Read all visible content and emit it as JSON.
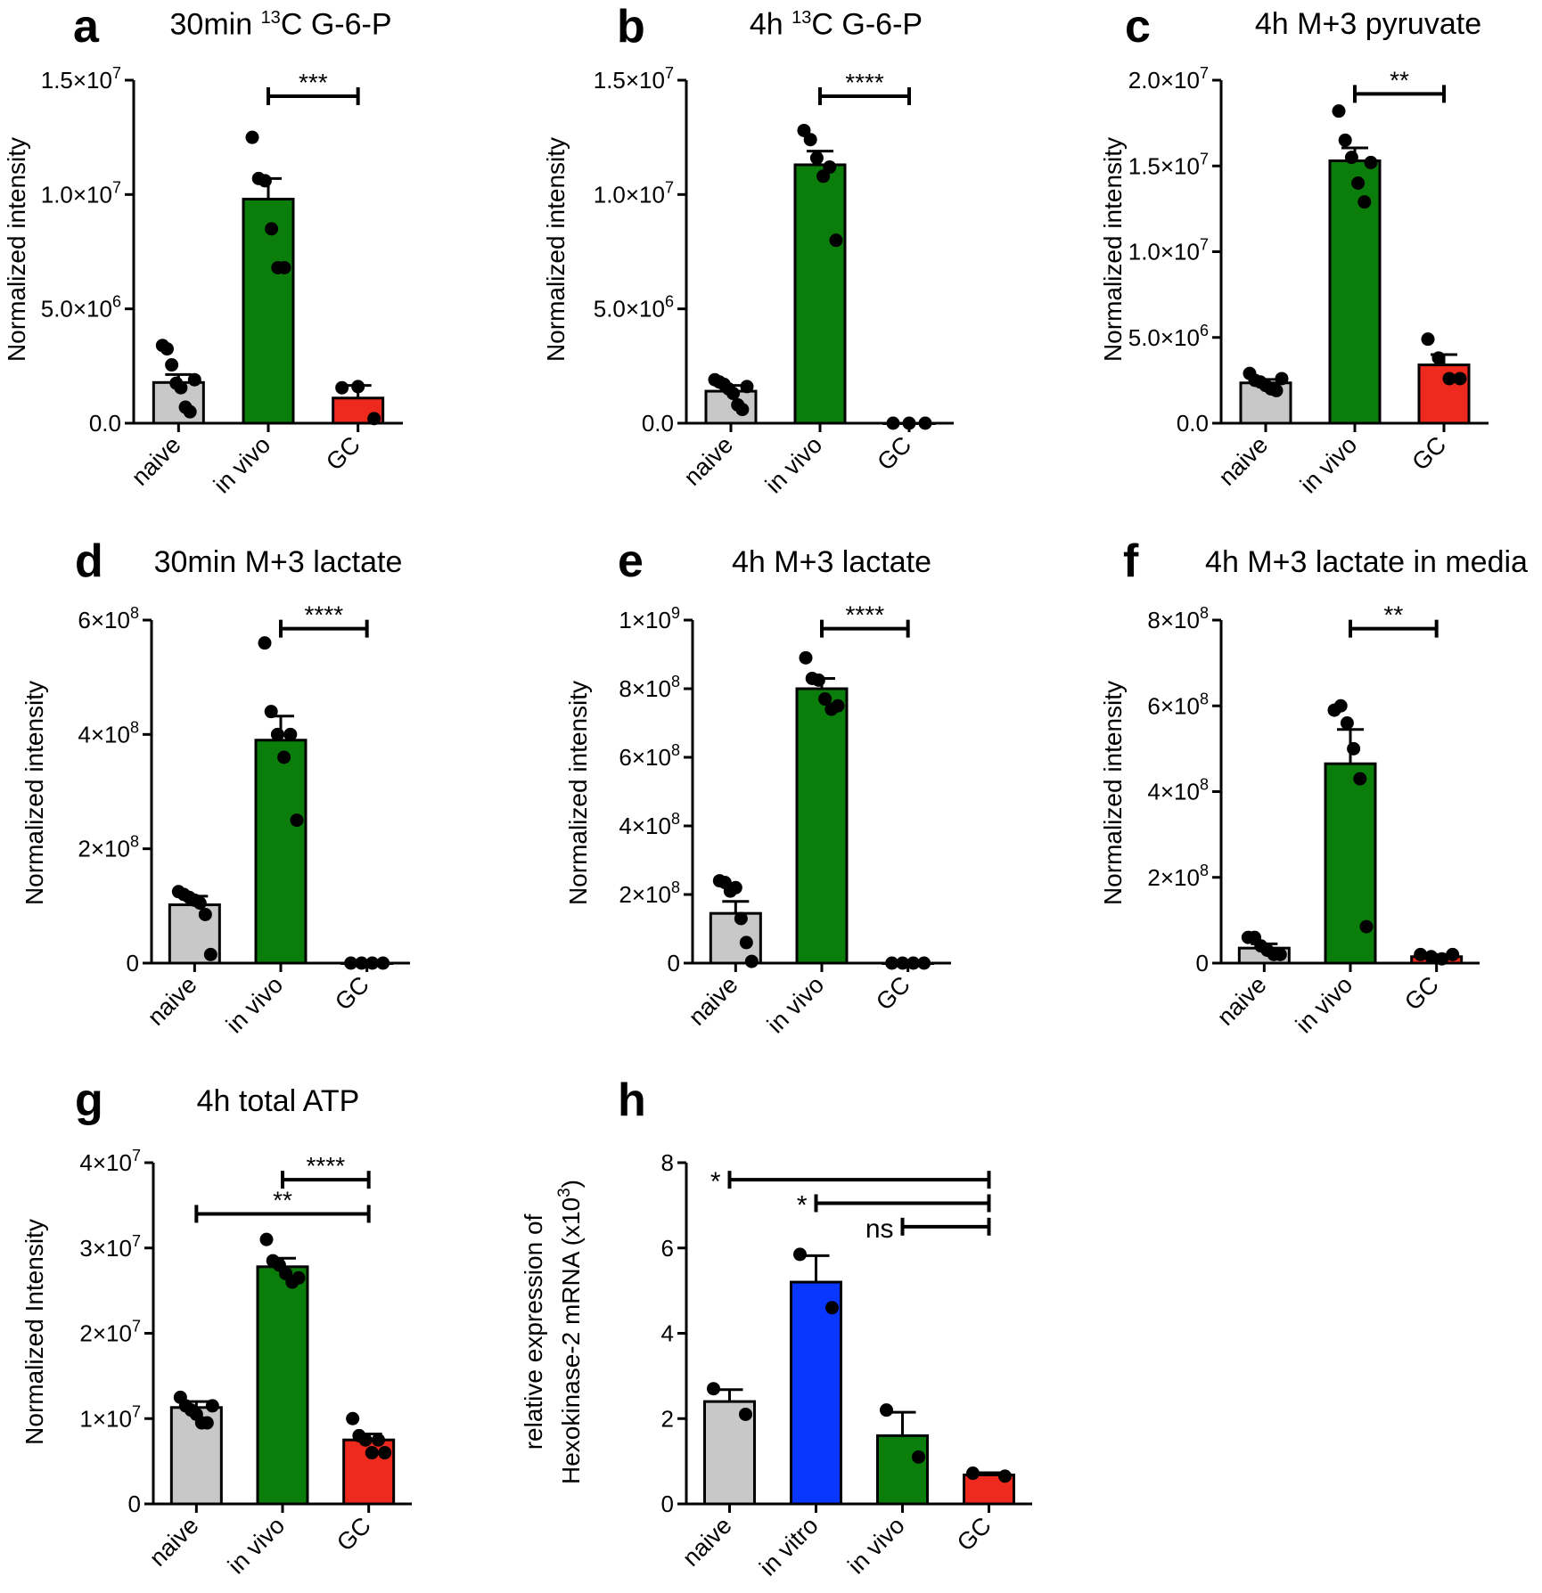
{
  "chart_data": [
    {
      "panel": "a",
      "type": "bar",
      "title": "30min ¹³C G-6-P",
      "title_pre": "30min ",
      "title_sup": "13",
      "title_post": "C G-6-P",
      "ylabel": "Normalized intensity",
      "categories": [
        "naive",
        "in vivo",
        "GC"
      ],
      "colors": [
        "#c8c8c8",
        "#0b7d0b",
        "#ee2a1f"
      ],
      "values": [
        1780000.0,
        9800000.0,
        1100000.0
      ],
      "errors": [
        350000.0,
        900000.0,
        550000.0
      ],
      "points": [
        [
          3400000.0,
          3250000.0,
          2550000.0,
          1750000.0,
          1550000.0,
          700000.0,
          500000.0,
          1900000.0
        ],
        [
          12500000.0,
          10700000.0,
          10600000.0,
          8500000.0,
          6800000.0,
          6800000.0
        ],
        [
          1550000.0,
          1600000.0,
          200000.0
        ]
      ],
      "ylim": [
        0,
        15000000
      ],
      "ticks": [
        {
          "v": 0,
          "m": "0.0",
          "e": ""
        },
        {
          "v": 5000000,
          "m": "5.0×10",
          "e": "6"
        },
        {
          "v": 10000000,
          "m": "1.0×10",
          "e": "7"
        },
        {
          "v": 15000000,
          "m": "1.5×10",
          "e": "7"
        }
      ],
      "sig": [
        {
          "from": 1,
          "to": 2,
          "label": "***",
          "y": 14300000.0
        }
      ]
    },
    {
      "panel": "b",
      "type": "bar",
      "title": "4h ¹³C G-6-P",
      "title_pre": "4h ",
      "title_sup": "13",
      "title_post": "C G-6-P",
      "ylabel": "Normalized intensity",
      "categories": [
        "naive",
        "in vivo",
        "GC"
      ],
      "colors": [
        "#c8c8c8",
        "#0b7d0b",
        "#ee2a1f"
      ],
      "values": [
        1400000.0,
        11300000.0,
        0.0
      ],
      "errors": [
        250000.0,
        600000.0,
        0.0
      ],
      "points": [
        [
          1900000.0,
          1800000.0,
          1700000.0,
          1500000.0,
          1300000.0,
          800000.0,
          600000.0,
          1600000.0
        ],
        [
          12800000.0,
          12400000.0,
          11600000.0,
          10800000.0,
          11200000.0,
          8000000.0
        ],
        [
          0.0,
          0.0,
          0.0
        ]
      ],
      "ylim": [
        0,
        15000000
      ],
      "ticks": [
        {
          "v": 0,
          "m": "0.0",
          "e": ""
        },
        {
          "v": 5000000,
          "m": "5.0×10",
          "e": "6"
        },
        {
          "v": 10000000,
          "m": "1.0×10",
          "e": "7"
        },
        {
          "v": 15000000,
          "m": "1.5×10",
          "e": "7"
        }
      ],
      "sig": [
        {
          "from": 1,
          "to": 2,
          "label": "****",
          "y": 14300000.0
        }
      ]
    },
    {
      "panel": "c",
      "type": "bar",
      "title": "4h M+3 pyruvate",
      "ylabel": "Normalized intensity",
      "categories": [
        "naive",
        "in vivo",
        "GC"
      ],
      "colors": [
        "#c8c8c8",
        "#0b7d0b",
        "#ee2a1f"
      ],
      "values": [
        2350000.0,
        15300000.0,
        3400000.0
      ],
      "errors": [
        200000.0,
        750000.0,
        600000.0
      ],
      "points": [
        [
          2900000.0,
          2500000.0,
          2400000.0,
          2200000.0,
          2000000.0,
          1900000.0,
          2600000.0
        ],
        [
          18200000.0,
          16500000.0,
          15500000.0,
          14000000.0,
          12900000.0,
          15200000.0
        ],
        [
          4900000.0,
          3800000.0,
          2600000.0,
          2600000.0
        ]
      ],
      "ylim": [
        0,
        20000000
      ],
      "ticks": [
        {
          "v": 0,
          "m": "0.0",
          "e": ""
        },
        {
          "v": 5000000,
          "m": "5.0×10",
          "e": "6"
        },
        {
          "v": 10000000,
          "m": "1.0×10",
          "e": "7"
        },
        {
          "v": 15000000,
          "m": "1.5×10",
          "e": "7"
        },
        {
          "v": 20000000,
          "m": "2.0×10",
          "e": "7"
        }
      ],
      "sig": [
        {
          "from": 1,
          "to": 2,
          "label": "**",
          "y": 19200000.0
        }
      ]
    },
    {
      "panel": "d",
      "type": "bar",
      "title": "30min M+3 lactate",
      "ylabel": "Normalized intensity",
      "categories": [
        "naive",
        "in vivo",
        "GC"
      ],
      "colors": [
        "#c8c8c8",
        "#0b7d0b",
        "#ee2a1f"
      ],
      "values": [
        102000000.0,
        390000000.0,
        0.0
      ],
      "errors": [
        15000000.0,
        42000000.0,
        0.0
      ],
      "points": [
        [
          125000000.0,
          120000000.0,
          115000000.0,
          110000000.0,
          105000000.0,
          85000000.0,
          15000000.0
        ],
        [
          560000000.0,
          440000000.0,
          400000000.0,
          360000000.0,
          400000000.0,
          250000000.0
        ],
        [
          0.0,
          0.0,
          0.0,
          0.0
        ]
      ],
      "ylim": [
        0,
        600000000
      ],
      "ticks": [
        {
          "v": 0,
          "m": "0",
          "e": ""
        },
        {
          "v": 200000000,
          "m": "2×10",
          "e": "8"
        },
        {
          "v": 400000000,
          "m": "4×10",
          "e": "8"
        },
        {
          "v": 600000000,
          "m": "6×10",
          "e": "8"
        }
      ],
      "sig": [
        {
          "from": 1,
          "to": 2,
          "label": "****",
          "y": 585000000.0
        }
      ]
    },
    {
      "panel": "e",
      "type": "bar",
      "title": "4h M+3 lactate",
      "ylabel": "Normalized intensity",
      "categories": [
        "naive",
        "in vivo",
        "GC"
      ],
      "colors": [
        "#c8c8c8",
        "#0b7d0b",
        "#ee2a1f"
      ],
      "values": [
        145000000.0,
        800000000.0,
        0.0
      ],
      "errors": [
        35000000.0,
        30000000.0,
        0.0
      ],
      "points": [
        [
          240000000.0,
          235000000.0,
          210000000.0,
          220000000.0,
          130000000.0,
          60000000.0,
          5000000.0
        ],
        [
          890000000.0,
          830000000.0,
          825000000.0,
          770000000.0,
          740000000.0,
          750000000.0
        ],
        [
          0.0,
          0.0,
          0.0,
          0.0
        ]
      ],
      "ylim": [
        0,
        1000000000
      ],
      "ticks": [
        {
          "v": 0,
          "m": "0",
          "e": ""
        },
        {
          "v": 200000000,
          "m": "2×10",
          "e": "8"
        },
        {
          "v": 400000000,
          "m": "4×10",
          "e": "8"
        },
        {
          "v": 600000000,
          "m": "6×10",
          "e": "8"
        },
        {
          "v": 800000000,
          "m": "8×10",
          "e": "8"
        },
        {
          "v": 1000000000,
          "m": "1×10",
          "e": "9"
        }
      ],
      "sig": [
        {
          "from": 1,
          "to": 2,
          "label": "****",
          "y": 975000000.0
        }
      ]
    },
    {
      "panel": "f",
      "type": "bar",
      "title": "4h M+3 lactate in media",
      "ylabel": "Normalized intensity",
      "categories": [
        "naive",
        "in vivo",
        "GC"
      ],
      "colors": [
        "#c8c8c8",
        "#0b7d0b",
        "#ee2a1f"
      ],
      "values": [
        35000000.0,
        465000000.0,
        15000000.0
      ],
      "errors": [
        10000000.0,
        80000000.0,
        5000000.0
      ],
      "points": [
        [
          60000000.0,
          60000000.0,
          40000000.0,
          30000000.0,
          20000000.0,
          20000000.0
        ],
        [
          590000000.0,
          600000000.0,
          560000000.0,
          500000000.0,
          430000000.0,
          85000000.0
        ],
        [
          20000000.0,
          15000000.0,
          10000000.0,
          20000000.0
        ]
      ],
      "ylim": [
        0,
        800000000
      ],
      "ticks": [
        {
          "v": 0,
          "m": "0",
          "e": ""
        },
        {
          "v": 200000000,
          "m": "2×10",
          "e": "8"
        },
        {
          "v": 400000000,
          "m": "4×10",
          "e": "8"
        },
        {
          "v": 600000000,
          "m": "6×10",
          "e": "8"
        },
        {
          "v": 800000000,
          "m": "8×10",
          "e": "8"
        }
      ],
      "sig": [
        {
          "from": 1,
          "to": 2,
          "label": "**",
          "y": 780000000.0
        }
      ]
    },
    {
      "panel": "g",
      "type": "bar",
      "title": "4h total ATP",
      "ylabel": "Normalized Intensity",
      "categories": [
        "naive",
        "in vivo",
        "GC"
      ],
      "colors": [
        "#c8c8c8",
        "#0b7d0b",
        "#ee2a1f"
      ],
      "values": [
        11300000.0,
        27800000.0,
        7500000.0
      ],
      "errors": [
        700000.0,
        1000000.0,
        700000.0
      ],
      "points": [
        [
          12500000.0,
          11500000.0,
          11000000.0,
          10500000.0,
          9500000.0,
          9500000.0,
          11500000.0
        ],
        [
          31000000.0,
          28500000.0,
          28000000.0,
          27000000.0,
          26000000.0,
          26500000.0
        ],
        [
          10000000.0,
          8000000.0,
          7500000.0,
          6000000.0,
          7500000.0,
          6000000.0
        ]
      ],
      "ylim": [
        0,
        40000000
      ],
      "ticks": [
        {
          "v": 0,
          "m": "0",
          "e": ""
        },
        {
          "v": 10000000,
          "m": "1×10",
          "e": "7"
        },
        {
          "v": 20000000,
          "m": "2×10",
          "e": "7"
        },
        {
          "v": 30000000,
          "m": "3×10",
          "e": "7"
        },
        {
          "v": 40000000,
          "m": "4×10",
          "e": "7"
        }
      ],
      "sig": [
        {
          "from": 1,
          "to": 2,
          "label": "****",
          "y": 38000000.0
        },
        {
          "from": 0,
          "to": 2,
          "label": "**",
          "y": 34000000.0
        }
      ]
    },
    {
      "panel": "h",
      "type": "bar",
      "title": "",
      "ylabel": "relative expression of",
      "ylabel2_pre": "Hexokinase-2 mRNA (x10",
      "ylabel2_sup": "3",
      "ylabel2_post": ")",
      "categories": [
        "naive",
        "in vitro",
        "in vivo",
        "GC"
      ],
      "colors": [
        "#c8c8c8",
        "#0a37ff",
        "#0b7d0b",
        "#ee2a1f"
      ],
      "values": [
        2.4,
        5.2,
        1.6,
        0.68
      ],
      "errors": [
        0.28,
        0.62,
        0.55,
        0.05
      ],
      "points": [
        [
          2.7,
          2.1
        ],
        [
          5.85,
          4.6
        ],
        [
          2.2,
          1.1
        ],
        [
          0.72,
          0.65
        ]
      ],
      "ylim": [
        0,
        8
      ],
      "ticks": [
        {
          "v": 0,
          "m": "0",
          "e": ""
        },
        {
          "v": 2,
          "m": "2",
          "e": ""
        },
        {
          "v": 4,
          "m": "4",
          "e": ""
        },
        {
          "v": 6,
          "m": "6",
          "e": ""
        },
        {
          "v": 8,
          "m": "8",
          "e": ""
        }
      ],
      "sig": [
        {
          "from": 0,
          "to": 3,
          "label": "*",
          "y": 7.6,
          "labelLeft": true
        },
        {
          "from": 1,
          "to": 3,
          "label": "*",
          "y": 7.05,
          "labelLeft": true
        },
        {
          "from": 2,
          "to": 3,
          "label": "ns",
          "y": 6.5,
          "labelLeft": true
        }
      ]
    }
  ]
}
